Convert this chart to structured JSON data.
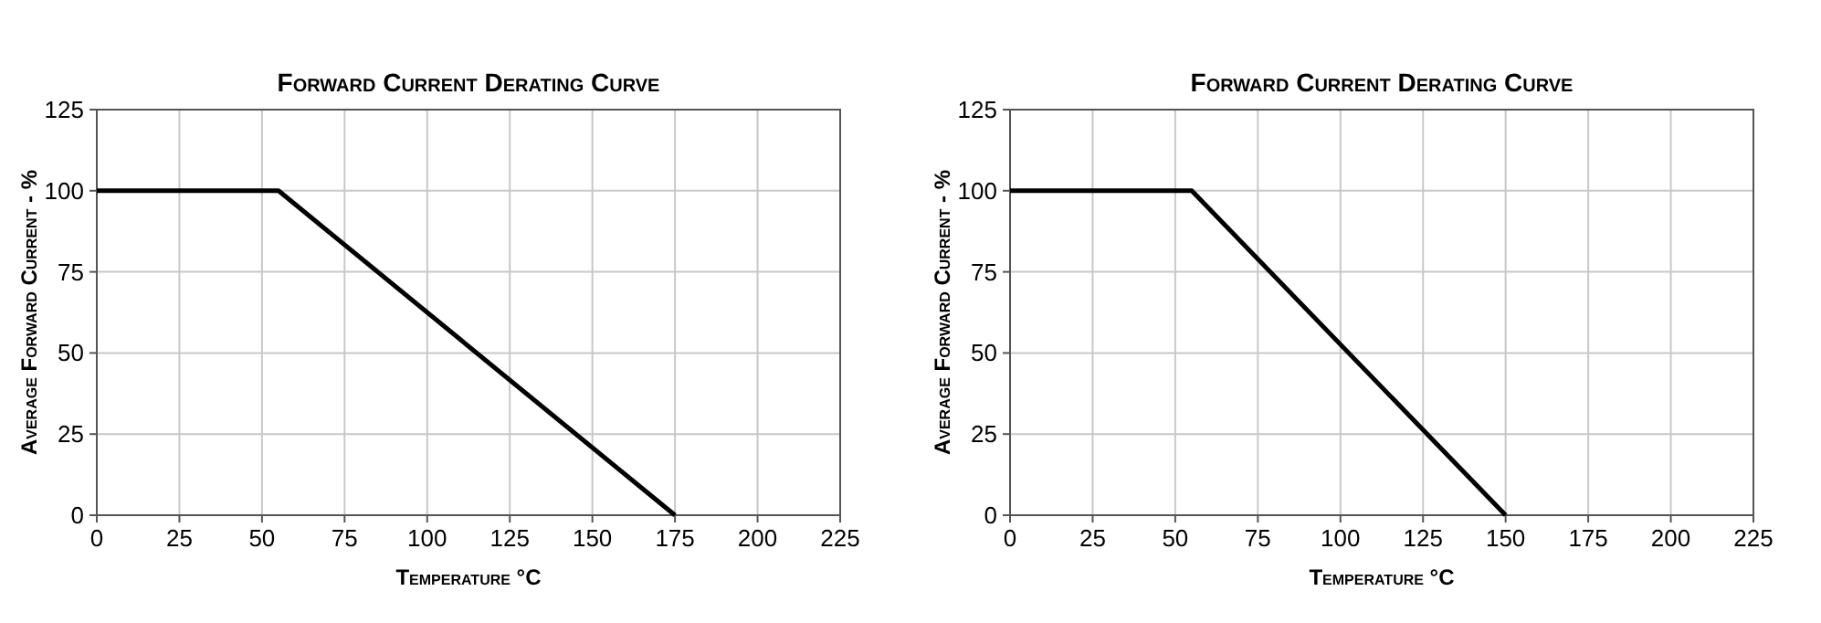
{
  "chart_data": [
    {
      "type": "line",
      "title": "Forward Current Derating Curve",
      "xlabel": "Temperature °C",
      "ylabel": "Average Forward Current - %",
      "x": [
        0,
        55,
        175
      ],
      "series": [
        {
          "color": "#000000",
          "values": [
            100,
            100,
            0
          ]
        }
      ],
      "xlim": [
        0,
        225
      ],
      "xticks": [
        0,
        25,
        50,
        75,
        100,
        125,
        150,
        175,
        200,
        225
      ],
      "ylim": [
        0,
        125
      ],
      "yticks": [
        0,
        25,
        50,
        75,
        100,
        125
      ],
      "grid": true
    },
    {
      "type": "line",
      "title": "Forward Current Derating Curve",
      "xlabel": "Temperature °C",
      "ylabel": "Average Forward Current - %",
      "x": [
        0,
        55,
        150
      ],
      "series": [
        {
          "color": "#000000",
          "values": [
            100,
            100,
            0
          ]
        }
      ],
      "xlim": [
        0,
        225
      ],
      "xticks": [
        0,
        25,
        50,
        75,
        100,
        125,
        150,
        175,
        200,
        225
      ],
      "ylim": [
        0,
        125
      ],
      "yticks": [
        0,
        25,
        50,
        75,
        100,
        125
      ],
      "grid": true
    }
  ]
}
